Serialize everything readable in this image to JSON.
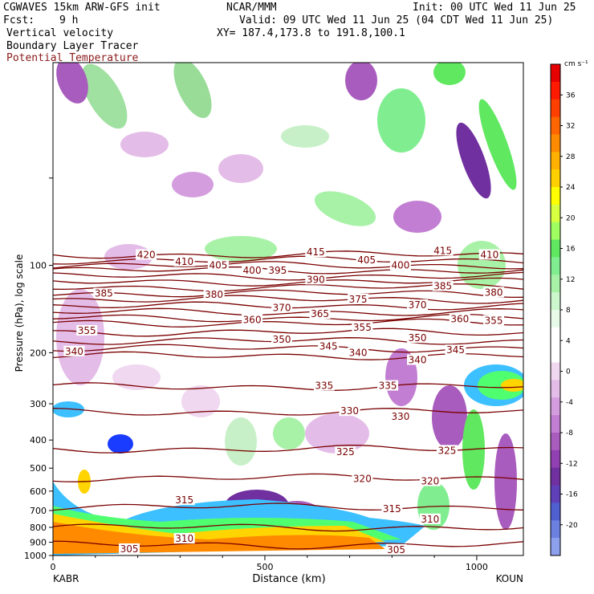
{
  "header": {
    "model": "CGWAVES 15km ARW-GFS init",
    "org": "NCAR/MMM",
    "init": "Init: 00 UTC Wed 11 Jun 25",
    "fcst_label": "Fcst:",
    "fcst_value": "9 h",
    "valid": "Valid: 09 UTC Wed 11 Jun 25 (04 CDT Wed 11 Jun 25)",
    "field1": "Vertical velocity",
    "field2": "Boundary Layer Tracer",
    "field3": "Potential Temperature",
    "xy": "XY= 187.4,173.8 to 191.8,100.1"
  },
  "chart_data": {
    "type": "heatmap",
    "ylabel": "Pressure (hPa), log scale",
    "xlabel": "Distance (km)",
    "y_log_scale": true,
    "ylim": [
      1000,
      20
    ],
    "xlim": [
      0,
      1110
    ],
    "x_ticks": [
      0,
      500,
      1000
    ],
    "y_ticks": [
      100,
      200,
      300,
      400,
      500,
      600,
      700,
      800,
      900,
      1000
    ],
    "endpoint_left": "KABR",
    "endpoint_right": "KOUN",
    "colorbar": {
      "units": "cm s⁻¹",
      "labels": [
        36,
        32,
        28,
        24,
        20,
        16,
        12,
        8,
        4,
        0,
        -4,
        -8,
        -12,
        -16,
        -20
      ],
      "colors": [
        "#e60000",
        "#ff1a00",
        "#ff4000",
        "#ff6600",
        "#ff8c00",
        "#ffb000",
        "#ffd000",
        "#ffff00",
        "#d8ff40",
        "#a0ff60",
        "#60e860",
        "#80ee90",
        "#a8f2a8",
        "#ccf6cc",
        "#e8fbe8",
        "#ffffff",
        "#ffffff",
        "#f0d8f0",
        "#e4bce8",
        "#d49ede",
        "#c27ed2",
        "#a85cbd",
        "#9040b0",
        "#7030a0",
        "#6040b8",
        "#5060d0",
        "#6c80e0",
        "#8ca0ee"
      ]
    },
    "theta_contours": [
      {
        "value": 420,
        "p": 92
      },
      {
        "value": 415,
        "p": 96
      },
      {
        "value": 410,
        "p": 100
      },
      {
        "value": 405,
        "p": 104
      },
      {
        "value": 400,
        "p": 109
      },
      {
        "value": 395,
        "p": 114
      },
      {
        "value": 390,
        "p": 119
      },
      {
        "value": 385,
        "p": 125
      },
      {
        "value": 380,
        "p": 131
      },
      {
        "value": 375,
        "p": 138
      },
      {
        "value": 370,
        "p": 145
      },
      {
        "value": 365,
        "p": 152
      },
      {
        "value": 360,
        "p": 158
      },
      {
        "value": 355,
        "p": 170
      },
      {
        "value": 350,
        "p": 182
      },
      {
        "value": 345,
        "p": 193
      },
      {
        "value": 340,
        "p": 205
      },
      {
        "value": 335,
        "p": 262
      },
      {
        "value": 330,
        "p": 320
      },
      {
        "value": 325,
        "p": 430
      },
      {
        "value": 320,
        "p": 540
      },
      {
        "value": 315,
        "p": 680
      },
      {
        "value": 310,
        "p": 800
      },
      {
        "value": 305,
        "p": 920
      }
    ],
    "contour_labels": [
      {
        "text": "420",
        "x": 220,
        "p": 92
      },
      {
        "text": "410",
        "x": 310,
        "p": 97
      },
      {
        "text": "405",
        "x": 390,
        "p": 100
      },
      {
        "text": "400",
        "x": 470,
        "p": 104
      },
      {
        "text": "395",
        "x": 530,
        "p": 104
      },
      {
        "text": "415",
        "x": 620,
        "p": 90
      },
      {
        "text": "405",
        "x": 740,
        "p": 96
      },
      {
        "text": "400",
        "x": 820,
        "p": 100
      },
      {
        "text": "415",
        "x": 920,
        "p": 89
      },
      {
        "text": "410",
        "x": 1030,
        "p": 92
      },
      {
        "text": "385",
        "x": 120,
        "p": 125
      },
      {
        "text": "380",
        "x": 380,
        "p": 126
      },
      {
        "text": "390",
        "x": 620,
        "p": 112
      },
      {
        "text": "385",
        "x": 920,
        "p": 118
      },
      {
        "text": "380",
        "x": 1040,
        "p": 124
      },
      {
        "text": "370",
        "x": 540,
        "p": 140
      },
      {
        "text": "375",
        "x": 720,
        "p": 131
      },
      {
        "text": "370",
        "x": 860,
        "p": 137
      },
      {
        "text": "365",
        "x": 630,
        "p": 147
      },
      {
        "text": "360",
        "x": 470,
        "p": 154
      },
      {
        "text": "360",
        "x": 960,
        "p": 153
      },
      {
        "text": "355",
        "x": 1040,
        "p": 155
      },
      {
        "text": "355",
        "x": 80,
        "p": 168
      },
      {
        "text": "355",
        "x": 730,
        "p": 164
      },
      {
        "text": "350",
        "x": 540,
        "p": 180
      },
      {
        "text": "350",
        "x": 860,
        "p": 178
      },
      {
        "text": "345",
        "x": 650,
        "p": 190
      },
      {
        "text": "345",
        "x": 950,
        "p": 196
      },
      {
        "text": "340",
        "x": 50,
        "p": 198
      },
      {
        "text": "340",
        "x": 720,
        "p": 200
      },
      {
        "text": "340",
        "x": 860,
        "p": 212
      },
      {
        "text": "335",
        "x": 640,
        "p": 260
      },
      {
        "text": "335",
        "x": 790,
        "p": 260
      },
      {
        "text": "330",
        "x": 700,
        "p": 318
      },
      {
        "text": "330",
        "x": 820,
        "p": 332
      },
      {
        "text": "325",
        "x": 690,
        "p": 440
      },
      {
        "text": "325",
        "x": 930,
        "p": 435
      },
      {
        "text": "320",
        "x": 730,
        "p": 545
      },
      {
        "text": "320",
        "x": 890,
        "p": 555
      },
      {
        "text": "315",
        "x": 310,
        "p": 645
      },
      {
        "text": "315",
        "x": 800,
        "p": 690
      },
      {
        "text": "310",
        "x": 890,
        "p": 750
      },
      {
        "text": "310",
        "x": 310,
        "p": 875
      },
      {
        "text": "305",
        "x": 180,
        "p": 950
      },
      {
        "text": "305",
        "x": 810,
        "p": 955
      }
    ]
  }
}
